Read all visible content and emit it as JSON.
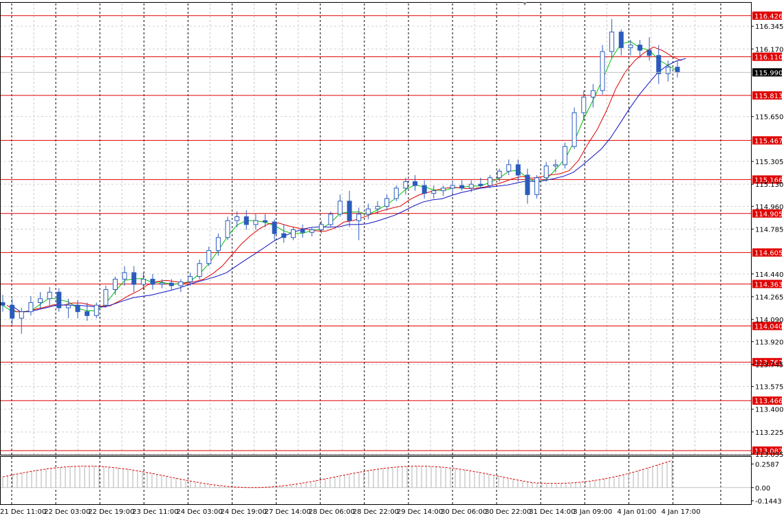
{
  "chart_data": {
    "type": "candlestick",
    "symbol": "",
    "main_panel": {
      "ylim": [
        113.05,
        116.52
      ],
      "y_ticks": [
        "116.345",
        "116.170",
        "115.650",
        "115.305",
        "115.130",
        "114.960",
        "114.785",
        "114.440",
        "114.265",
        "114.090",
        "113.920",
        "113.745",
        "113.575",
        "113.400",
        "113.225",
        "113.055"
      ],
      "current_price": "115.990",
      "levels": [
        "116.426",
        "116.110",
        "115.813",
        "115.467",
        "115.166",
        "114.905",
        "114.605",
        "114.363",
        "114.040",
        "113.762",
        "113.466",
        "113.082"
      ],
      "series_colors": {
        "candles": "#2a5bbd",
        "ma_fast": "#00c000",
        "ma_mid": "#e00000",
        "ma_slow": "#1010c0",
        "levels": "#e00000"
      },
      "ohlc": [
        [
          114.22,
          114.28,
          114.15,
          114.2
        ],
        [
          114.2,
          114.25,
          114.05,
          114.1
        ],
        [
          114.1,
          114.18,
          113.98,
          114.15
        ],
        [
          114.15,
          114.27,
          114.12,
          114.22
        ],
        [
          114.22,
          114.3,
          114.18,
          114.25
        ],
        [
          114.25,
          114.34,
          114.2,
          114.3
        ],
        [
          114.3,
          114.33,
          114.15,
          114.18
        ],
        [
          114.18,
          114.25,
          114.1,
          114.2
        ],
        [
          114.2,
          114.24,
          114.1,
          114.15
        ],
        [
          114.15,
          114.22,
          114.08,
          114.12
        ],
        [
          114.12,
          114.22,
          114.1,
          114.2
        ],
        [
          114.2,
          114.35,
          114.18,
          114.32
        ],
        [
          114.32,
          114.42,
          114.28,
          114.4
        ],
        [
          114.4,
          114.5,
          114.35,
          114.45
        ],
        [
          114.45,
          114.5,
          114.3,
          114.36
        ],
        [
          114.36,
          114.45,
          114.32,
          114.4
        ],
        [
          114.4,
          114.44,
          114.32,
          114.36
        ],
        [
          114.36,
          114.4,
          114.33,
          114.37
        ],
        [
          114.37,
          114.4,
          114.32,
          114.35
        ],
        [
          114.35,
          114.4,
          114.3,
          114.38
        ],
        [
          114.38,
          114.45,
          114.35,
          114.42
        ],
        [
          114.42,
          114.55,
          114.4,
          114.52
        ],
        [
          114.52,
          114.65,
          114.5,
          114.62
        ],
        [
          114.62,
          114.75,
          114.58,
          114.72
        ],
        [
          114.72,
          114.88,
          114.7,
          114.85
        ],
        [
          114.85,
          114.92,
          114.8,
          114.88
        ],
        [
          114.88,
          114.93,
          114.78,
          114.82
        ],
        [
          114.82,
          114.9,
          114.78,
          114.85
        ],
        [
          114.85,
          114.9,
          114.8,
          114.84
        ],
        [
          114.84,
          114.86,
          114.7,
          114.75
        ],
        [
          114.75,
          114.82,
          114.68,
          114.72
        ],
        [
          114.72,
          114.8,
          114.7,
          114.78
        ],
        [
          114.78,
          114.82,
          114.72,
          114.76
        ],
        [
          114.76,
          114.8,
          114.73,
          114.78
        ],
        [
          114.78,
          114.85,
          114.75,
          114.82
        ],
        [
          114.82,
          114.92,
          114.8,
          114.9
        ],
        [
          114.9,
          115.05,
          114.88,
          115.0
        ],
        [
          115.0,
          115.08,
          114.8,
          114.85
        ],
        [
          114.85,
          114.95,
          114.7,
          114.9
        ],
        [
          114.9,
          114.98,
          114.86,
          114.94
        ],
        [
          114.94,
          115.0,
          114.9,
          114.96
        ],
        [
          114.96,
          115.05,
          114.93,
          115.02
        ],
        [
          115.02,
          115.12,
          115.0,
          115.1
        ],
        [
          115.1,
          115.18,
          115.05,
          115.15
        ],
        [
          115.15,
          115.2,
          115.08,
          115.12
        ],
        [
          115.12,
          115.16,
          115.02,
          115.06
        ],
        [
          115.06,
          115.12,
          115.02,
          115.08
        ],
        [
          115.08,
          115.12,
          115.04,
          115.1
        ],
        [
          115.1,
          115.15,
          115.06,
          115.12
        ],
        [
          115.12,
          115.16,
          115.08,
          115.1
        ],
        [
          115.1,
          115.16,
          115.07,
          115.13
        ],
        [
          115.13,
          115.18,
          115.1,
          115.12
        ],
        [
          115.12,
          115.2,
          115.1,
          115.18
        ],
        [
          115.18,
          115.25,
          115.15,
          115.23
        ],
        [
          115.23,
          115.32,
          115.2,
          115.28
        ],
        [
          115.28,
          115.32,
          115.15,
          115.2
        ],
        [
          115.2,
          115.25,
          114.98,
          115.05
        ],
        [
          115.05,
          115.2,
          115.02,
          115.18
        ],
        [
          115.18,
          115.3,
          115.15,
          115.27
        ],
        [
          115.27,
          115.32,
          115.22,
          115.28
        ],
        [
          115.28,
          115.45,
          115.25,
          115.42
        ],
        [
          115.42,
          115.72,
          115.4,
          115.68
        ],
        [
          115.68,
          115.85,
          115.62,
          115.8
        ],
        [
          115.8,
          115.9,
          115.72,
          115.85
        ],
        [
          115.85,
          116.2,
          115.82,
          116.15
        ],
        [
          116.15,
          116.4,
          116.1,
          116.3
        ],
        [
          116.3,
          116.32,
          116.12,
          116.18
        ],
        [
          116.18,
          116.24,
          116.12,
          116.2
        ],
        [
          116.2,
          116.24,
          116.1,
          116.16
        ],
        [
          116.16,
          116.26,
          116.08,
          116.12
        ],
        [
          116.12,
          116.2,
          115.9,
          115.98
        ],
        [
          115.98,
          116.08,
          115.92,
          116.03
        ],
        [
          116.03,
          116.08,
          115.95,
          115.99
        ]
      ],
      "ma_fast_last": [
        116.1,
        116.05,
        116.02
      ],
      "ma_mid_last": [
        116.0,
        116.02,
        116.03
      ],
      "ma_slow_last": [
        115.9,
        115.95,
        115.97
      ]
    },
    "sub_panel": {
      "y_ticks": [
        "0.2587",
        "0.00",
        "-0.1443"
      ],
      "ylim": [
        -0.19,
        0.33
      ]
    },
    "x_ticks": [
      "21 Dec 11:00",
      "22 Dec 03:00",
      "22 Dec 19:00",
      "23 Dec 11:00",
      "24 Dec 03:00",
      "24 Dec 19:00",
      "27 Dec 14:00",
      "28 Dec 06:00",
      "28 Dec 22:00",
      "29 Dec 14:00",
      "30 Dec 06:00",
      "30 Dec 22:00",
      "31 Dec 14:00",
      "3 Jan 09:00",
      "4 Jan 01:00",
      "4 Jan 17:00"
    ]
  }
}
